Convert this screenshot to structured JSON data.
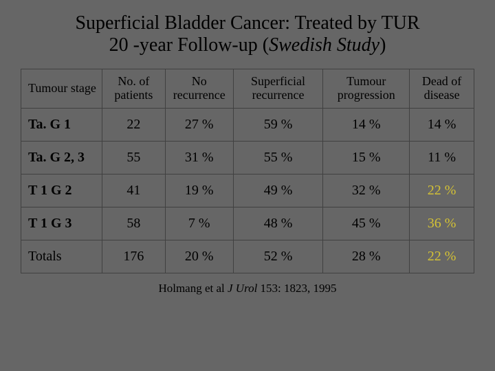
{
  "colors": {
    "background": "#666666",
    "border": "#404040",
    "text": "#000000",
    "highlight": "#d4c235"
  },
  "typography": {
    "family": "Times New Roman",
    "title_fontsize": 28,
    "header_fontsize": 18,
    "cell_fontsize": 20,
    "citation_fontsize": 17
  },
  "title": {
    "line1": "Superficial Bladder Cancer: Treated by TUR",
    "line2_plain": "20 -year Follow-up  (",
    "line2_italic": "Swedish Study",
    "line2_close": ")"
  },
  "table": {
    "type": "table",
    "columns": [
      {
        "key": "stage",
        "label": "Tumour stage",
        "align": "left"
      },
      {
        "key": "n",
        "label": "No. of patients",
        "align": "center"
      },
      {
        "key": "norec",
        "label": "No recurrence",
        "align": "center"
      },
      {
        "key": "suprec",
        "label": "Superficial recurrence",
        "align": "center"
      },
      {
        "key": "prog",
        "label": "Tumour progression",
        "align": "center"
      },
      {
        "key": "dead",
        "label": "Dead of disease",
        "align": "center"
      }
    ],
    "rows": [
      {
        "stage": "Ta. G 1",
        "n": "22",
        "norec": "27 %",
        "suprec": "59 %",
        "prog": "14 %",
        "dead": "14 %",
        "bold_label": true,
        "highlight_dead": false
      },
      {
        "stage": "Ta. G 2, 3",
        "n": "55",
        "norec": "31 %",
        "suprec": "55 %",
        "prog": "15 %",
        "dead": "11 %",
        "bold_label": true,
        "highlight_dead": false
      },
      {
        "stage": "T 1 G 2",
        "n": "41",
        "norec": "19 %",
        "suprec": "49 %",
        "prog": "32 %",
        "dead": "22 %",
        "bold_label": true,
        "highlight_dead": true
      },
      {
        "stage": "T 1 G 3",
        "n": "58",
        "norec": "7 %",
        "suprec": "48 %",
        "prog": "45 %",
        "dead": "36 %",
        "bold_label": true,
        "highlight_dead": true
      },
      {
        "stage": "Totals",
        "n": "176",
        "norec": "20 %",
        "suprec": "52 %",
        "prog": "28 %",
        "dead": "22 %",
        "bold_label": false,
        "highlight_dead": true
      }
    ]
  },
  "citation": {
    "prefix": "Holmang et al ",
    "journal": "J Urol ",
    "suffix": "153: 1823, 1995"
  }
}
